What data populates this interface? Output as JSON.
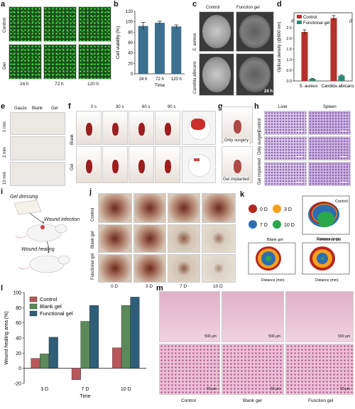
{
  "panel_letters": {
    "a": "a",
    "b": "b",
    "c": "c",
    "d": "d",
    "e": "e",
    "f": "f",
    "g": "g",
    "h": "h",
    "i": "i",
    "j": "j",
    "k": "k",
    "l": "l",
    "m": "m"
  },
  "panel_a": {
    "rows": [
      "Control",
      "Gel"
    ],
    "cols": [
      "24 h",
      "72 h",
      "120 h"
    ]
  },
  "panel_c": {
    "cols": [
      "Control",
      "Function gel"
    ],
    "rows": [
      "S. aureus",
      "Candida albicans"
    ],
    "corner": "24 h"
  },
  "panel_e": {
    "cols": [
      "Gauze",
      "Blank",
      "Gel"
    ],
    "rows": [
      "1 min",
      "2 min",
      "10 min"
    ]
  },
  "panel_f": {
    "cols": [
      "0 s",
      "30 s",
      "60 s",
      "90 s"
    ],
    "rows": [
      "Blank",
      "Gel"
    ]
  },
  "panel_g": {
    "captions": [
      "Only surgery",
      "Gel implanted"
    ]
  },
  "panel_h": {
    "cols": [
      "Liver",
      "Spleen"
    ],
    "rows": [
      "Control",
      "Only surgery",
      "Gel implanted"
    ]
  },
  "panel_i": {
    "labels": [
      "Gel dressing",
      "Wound infection",
      "Wound healing"
    ]
  },
  "panel_j": {
    "rows": [
      "Control",
      "Blank gel",
      "Functional gel"
    ],
    "cols": [
      "0 D",
      "3 D",
      "7 D",
      "10 D"
    ]
  },
  "panel_k": {
    "legend": [
      {
        "label": "0 D",
        "color": "#b5271c"
      },
      {
        "label": "3 D",
        "color": "#f6a11d"
      },
      {
        "label": "7 D",
        "color": "#2e6db4"
      },
      {
        "label": "10 D",
        "color": "#2aa84a"
      }
    ],
    "plots": [
      "Control",
      "Blank gel",
      "Functional gel"
    ],
    "xlabel": "Distance (mm)",
    "xticks": [
      "0",
      "2",
      "4",
      "6",
      "8",
      "10"
    ],
    "yticks": [
      "10",
      "8",
      "6",
      "4",
      "2",
      "0"
    ]
  },
  "panel_m": {
    "cols": [
      "Control",
      "Blank gel",
      "Function gel"
    ],
    "scale_top": "500 μm",
    "scale_bottom": "50 μm"
  },
  "chart_data": [
    {
      "type": "bar",
      "panel": "b",
      "categories": [
        "24 h",
        "72 h",
        "120 h"
      ],
      "values": [
        92,
        98,
        91
      ],
      "errors": [
        7,
        3,
        3
      ],
      "xlabel": "Time",
      "ylabel": "Cell viability (%)",
      "ylim": [
        0,
        120
      ],
      "yticks": [
        0,
        20,
        40,
        60,
        80,
        100,
        120
      ],
      "color": "#3d6f8e"
    },
    {
      "type": "bar",
      "panel": "d",
      "categories": [
        "S. aureus",
        "Candida albicans"
      ],
      "series": [
        {
          "name": "Control",
          "values": [
            2.3,
            2.95
          ],
          "errors": [
            0.1,
            0.12
          ],
          "color": "#b5302a"
        },
        {
          "name": "Functional gel",
          "values": [
            0.1,
            0.25
          ],
          "errors": [
            0.02,
            0.03
          ],
          "color": "#2a8a78"
        }
      ],
      "ylabel": "Optical density (@600 nm)",
      "ylim": [
        0,
        3.2
      ],
      "yticks": [
        0,
        0.5,
        1.0,
        1.5,
        2.0,
        2.5
      ],
      "axis_break": true
    },
    {
      "type": "bar",
      "panel": "l",
      "categories": [
        "3 D",
        "7 D",
        "10 D"
      ],
      "series": [
        {
          "name": "Control",
          "values": [
            13,
            -15,
            27
          ],
          "color": "#b8575a"
        },
        {
          "name": "Blank gel",
          "values": [
            19,
            62,
            83
          ],
          "color": "#5a8a5a"
        },
        {
          "name": "Functional gel",
          "values": [
            41,
            83,
            94
          ],
          "color": "#2f5f78"
        }
      ],
      "xlabel": "Time",
      "ylabel": "Wound healing area (%)",
      "ylim": [
        -20,
        100
      ],
      "yticks": [
        -20,
        0,
        20,
        40,
        60,
        80,
        100
      ],
      "legend": "top-left"
    }
  ]
}
